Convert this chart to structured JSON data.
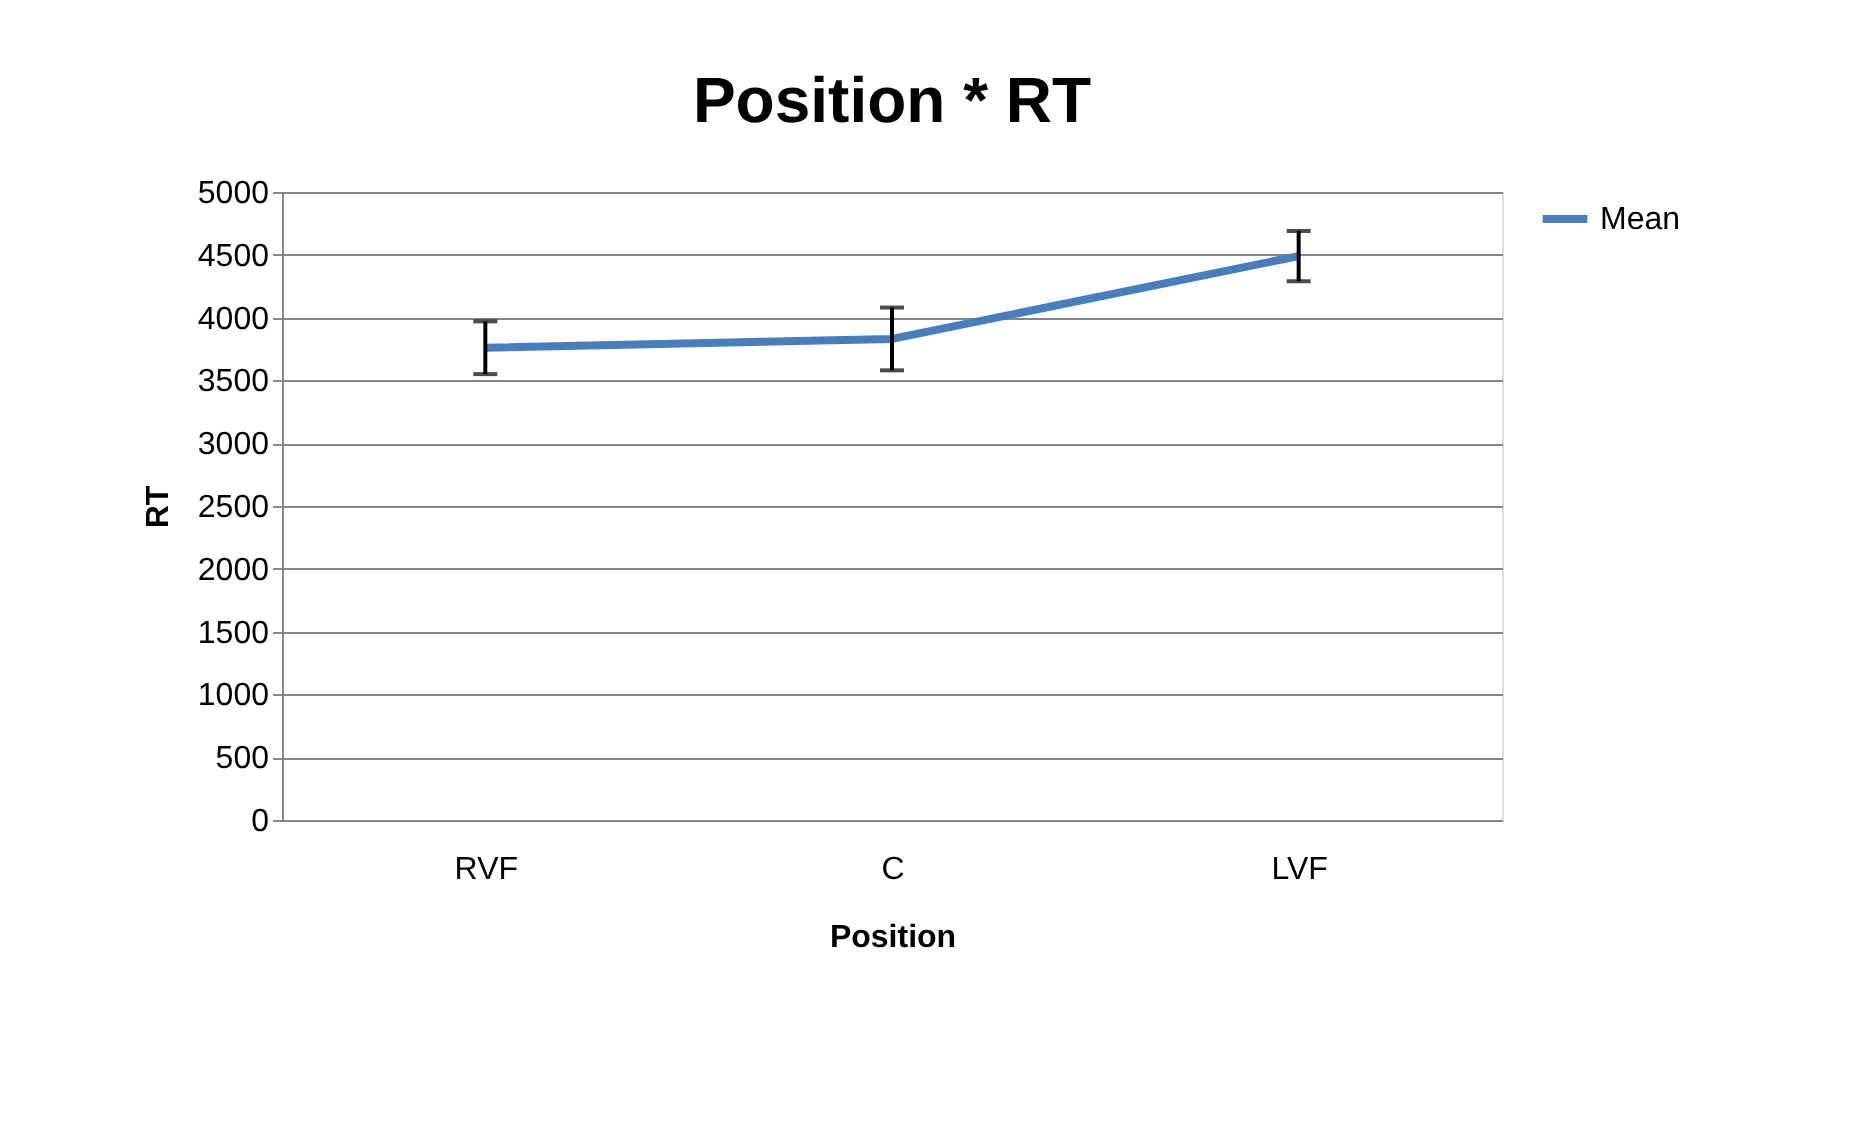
{
  "chart_data": {
    "type": "line",
    "title": "Position * RT",
    "xlabel": "Position",
    "ylabel": "RT",
    "categories": [
      "RVF",
      "C",
      "LVF"
    ],
    "series": [
      {
        "name": "Mean",
        "color": "#4a7ebb",
        "values": [
          3760,
          3830,
          4490
        ],
        "errors": [
          210,
          250,
          200
        ]
      }
    ],
    "ylim": [
      0,
      5000
    ],
    "yticks": [
      0,
      500,
      1000,
      1500,
      2000,
      2500,
      3000,
      3500,
      4000,
      4500,
      5000
    ],
    "grid": "y",
    "legend": "right",
    "marker": "none",
    "line_style": "solid"
  }
}
